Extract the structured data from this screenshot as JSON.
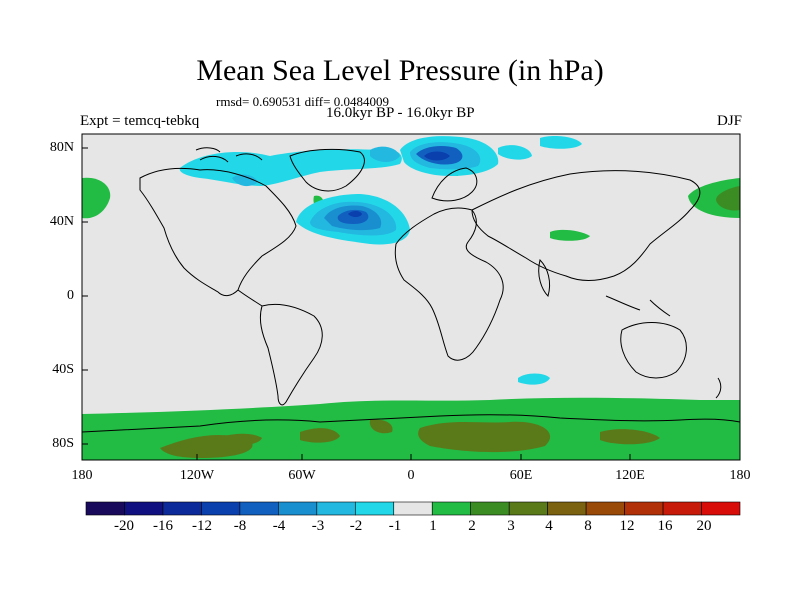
{
  "title": "Mean Sea Level Pressure (in hPa)",
  "stats": "rmsd= 0.690531  diff= 0.0484009",
  "expt_label": "Expt = temcq-tebkq",
  "period_label": "16.0kyr BP - 16.0kyr BP",
  "season_label": "DJF",
  "lat_labels": [
    "80N",
    "40N",
    "0",
    "40S",
    "80S"
  ],
  "lon_labels": [
    "180",
    "120W",
    "60W",
    "0",
    "60E",
    "120E",
    "180"
  ],
  "colorbar": {
    "labels": [
      "-20",
      "-16",
      "-12",
      "-8",
      "-4",
      "-3",
      "-2",
      "-1",
      "1",
      "2",
      "3",
      "4",
      "8",
      "12",
      "16",
      "20"
    ],
    "colors": [
      "#1a0a5c",
      "#101080",
      "#0d2a9a",
      "#0a3fae",
      "#1160c0",
      "#1a8fd0",
      "#22b8e0",
      "#22d8e8",
      "#e6e6e6",
      "#22bb44",
      "#3c8c24",
      "#5a7a1a",
      "#7a6210",
      "#9a4a08",
      "#b23008",
      "#c81a08",
      "#d80c08"
    ]
  },
  "colors": {
    "background": "#e6e6e6",
    "coast": "#000000",
    "green": "#22bb44",
    "olive": "#5a7a1a",
    "blue_light": "#22d8e8",
    "blue_mid": "#22b8e0",
    "blue_dark": "#1160c0",
    "blue_deep": "#0a3fae"
  }
}
